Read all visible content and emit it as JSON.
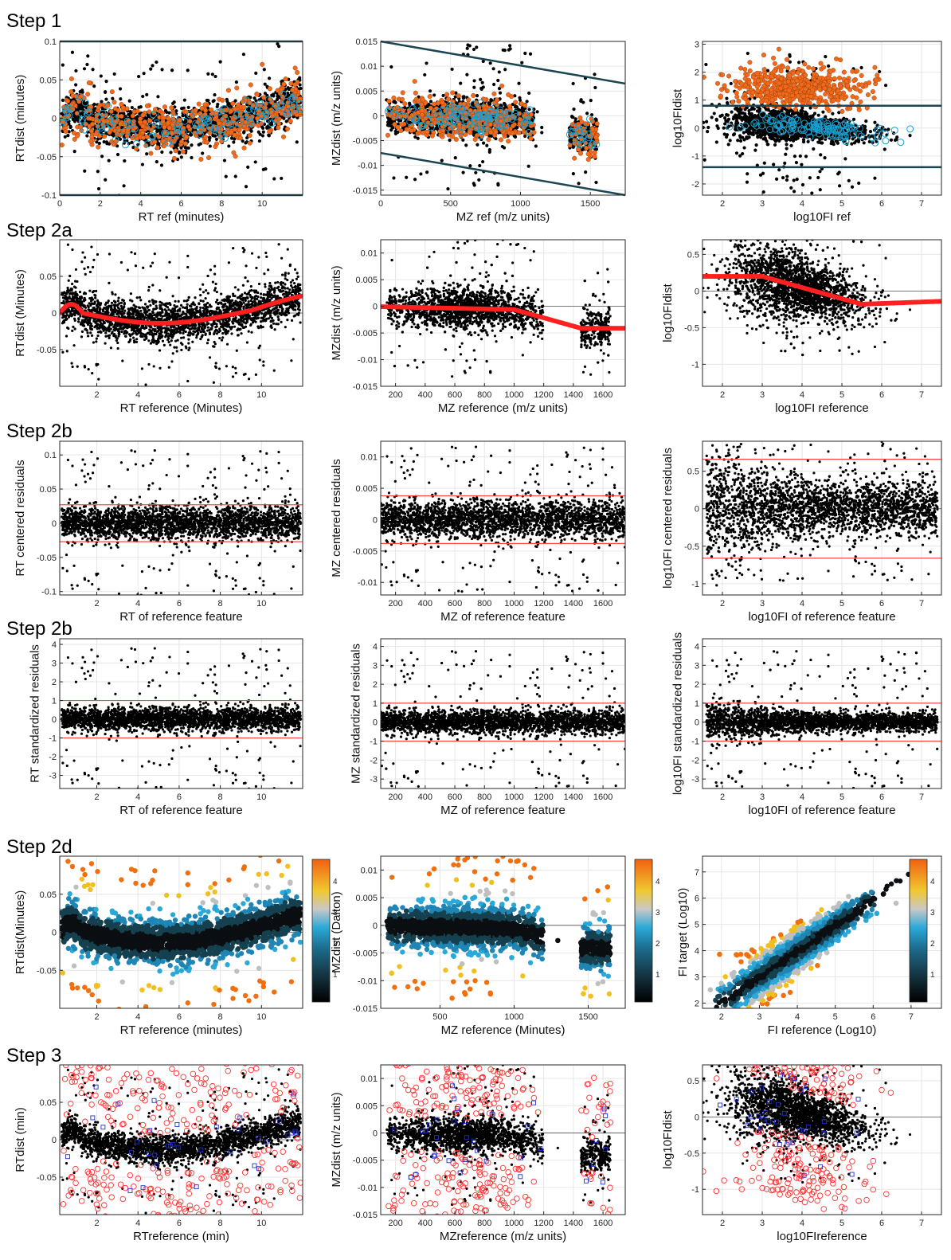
{
  "rows": [
    {
      "step": "Step 1",
      "panels": [
        {
          "xlabel": "RT ref (minutes)",
          "ylabel": "RTdist (minutes)",
          "xlim": [
            0,
            12
          ],
          "ylim": [
            -0.1,
            0.1
          ],
          "xticks": [
            0,
            2,
            4,
            6,
            8,
            10
          ],
          "yticks": [
            -0.1,
            -0.05,
            0,
            0.05,
            0.1
          ],
          "yfmt": [
            "-0.1",
            "-0.05",
            "0",
            "0.05",
            "0.1"
          ],
          "style": "s1",
          "curve": "rt",
          "spread": 0.018,
          "lines": [
            0.1,
            -0.1
          ]
        },
        {
          "xlabel": "MZ ref (m/z units)",
          "ylabel": "MZdist (m/z units)",
          "xlim": [
            0,
            1750
          ],
          "ylim": [
            -0.016,
            0.015
          ],
          "xticks": [
            0,
            500,
            1000,
            1500
          ],
          "yticks": [
            -0.015,
            -0.01,
            -0.005,
            0,
            0.005,
            0.01,
            0.015
          ],
          "yfmt": [
            "-0.015",
            "-0.01",
            "-0.005",
            "0",
            "0.005",
            "0.01",
            "0.015"
          ],
          "style": "s1",
          "curve": "mz",
          "spread": 0.0022,
          "slanted": [
            [
              0,
              0.015,
              1750,
              0.0065
            ],
            [
              0,
              -0.0075,
              1750,
              -0.016
            ]
          ]
        },
        {
          "xlabel": "log10FI ref",
          "ylabel": "log10FIdist",
          "xlim": [
            1.5,
            7.5
          ],
          "ylim": [
            -2.4,
            3.1
          ],
          "xticks": [
            2,
            3,
            4,
            5,
            6,
            7
          ],
          "yticks": [
            -2,
            -1,
            0,
            1,
            2,
            3
          ],
          "yfmt": [
            "-2",
            "-1",
            "0",
            "1",
            "2",
            "3"
          ],
          "style": "s1",
          "curve": "fi",
          "spread": 0.28,
          "lines": [
            0.8,
            -1.4
          ]
        }
      ]
    },
    {
      "step": "Step 2a",
      "panels": [
        {
          "xlabel": "RT reference (Minutes)",
          "ylabel": "RTdist (Minutes)",
          "xlim": [
            0.2,
            12
          ],
          "ylim": [
            -0.1,
            0.1
          ],
          "xticks": [
            2,
            4,
            6,
            8,
            10
          ],
          "yticks": [
            -0.05,
            0,
            0.05
          ],
          "yfmt": [
            "-0.05",
            "0",
            "0.05"
          ],
          "style": "dots",
          "curve": "rt",
          "spread": 0.02,
          "fit": true
        },
        {
          "xlabel": "MZ reference (m/z units)",
          "ylabel": "MZdist (m/z units)",
          "xlim": [
            100,
            1750
          ],
          "ylim": [
            -0.015,
            0.0125
          ],
          "xticks": [
            200,
            400,
            600,
            800,
            1000,
            1200,
            1400,
            1600
          ],
          "yticks": [
            -0.015,
            -0.01,
            -0.005,
            0,
            0.005,
            0.01
          ],
          "yfmt": [
            "-0.015",
            "-0.01",
            "-0.005",
            "0",
            "0.005",
            "0.01"
          ],
          "style": "dots",
          "curve": "mz",
          "spread": 0.0025,
          "fit": true
        },
        {
          "xlabel": "log10FI reference",
          "ylabel": "log10FIdist",
          "xlim": [
            1.5,
            7.5
          ],
          "ylim": [
            -1.3,
            0.7
          ],
          "xticks": [
            2,
            3,
            4,
            5,
            6,
            7
          ],
          "yticks": [
            -1,
            -0.5,
            0,
            0.5
          ],
          "yfmt": [
            "-1",
            "-0.5",
            "0",
            "0.5"
          ],
          "style": "dots",
          "curve": "fi",
          "spread": 0.25,
          "fit": true
        }
      ]
    },
    {
      "step": "Step 2b",
      "panels": [
        {
          "xlabel": "RT of reference feature",
          "ylabel": "RT centered residuals",
          "xlim": [
            0.2,
            12
          ],
          "ylim": [
            -0.105,
            0.12
          ],
          "xticks": [
            2,
            4,
            6,
            8,
            10
          ],
          "yticks": [
            -0.1,
            -0.05,
            0,
            0.05,
            0.1
          ],
          "yfmt": [
            "-0.1",
            "-0.05",
            "0",
            "0.05",
            "0.1"
          ],
          "style": "dots",
          "curve": "flat",
          "spread": 0.018,
          "lines": [
            0.027,
            -0.027
          ],
          "lineColor": "#ff4444"
        },
        {
          "xlabel": "MZ of reference feature",
          "ylabel": "MZ centered residuals",
          "xlim": [
            100,
            1750
          ],
          "ylim": [
            -0.012,
            0.0125
          ],
          "xticks": [
            200,
            400,
            600,
            800,
            1000,
            1200,
            1400,
            1600
          ],
          "yticks": [
            -0.01,
            -0.005,
            0,
            0.005,
            0.01
          ],
          "yfmt": [
            "-0.01",
            "-0.005",
            "0",
            "0.005",
            "0.01"
          ],
          "style": "dots",
          "curve": "flat",
          "spread": 0.0022,
          "lines": [
            0.0038,
            -0.0038
          ],
          "lineColor": "#ff4444"
        },
        {
          "xlabel": "log10FI of reference feature",
          "ylabel": "log10FI centered residuals",
          "xlim": [
            1.5,
            7.5
          ],
          "ylim": [
            -1.15,
            0.9
          ],
          "xticks": [
            2,
            3,
            4,
            5,
            6,
            7
          ],
          "yticks": [
            -1,
            -0.5,
            0,
            0.5
          ],
          "yfmt": [
            "-1",
            "-0.5",
            "0",
            "0.5"
          ],
          "style": "dots",
          "curve": "flat",
          "spread": 0.26,
          "lines": [
            0.66,
            -0.66
          ],
          "lineColor": "#ff4444"
        }
      ]
    },
    {
      "step": "Step 2b",
      "panels": [
        {
          "xlabel": "RT of reference feature",
          "ylabel": "RT standardized residuals",
          "xlim": [
            0.2,
            12
          ],
          "ylim": [
            -3.7,
            4.3
          ],
          "xticks": [
            2,
            4,
            6,
            8,
            10
          ],
          "yticks": [
            -3,
            -2,
            -1,
            0,
            1,
            2,
            3,
            4
          ],
          "yfmt": [
            "-3",
            "-2",
            "-1",
            "0",
            "1",
            "2",
            "3",
            "4"
          ],
          "style": "dots",
          "curve": "flat",
          "spread": 0.45,
          "lines": [
            1,
            -1
          ],
          "lineColor": "#ff4444"
        },
        {
          "xlabel": "MZ of reference feature",
          "ylabel": "MZ standardized residuals",
          "xlim": [
            100,
            1750
          ],
          "ylim": [
            -3.5,
            4.4
          ],
          "xticks": [
            200,
            400,
            600,
            800,
            1000,
            1200,
            1400,
            1600
          ],
          "yticks": [
            -3,
            -2,
            -1,
            0,
            1,
            2,
            3,
            4
          ],
          "yfmt": [
            "-3",
            "-2",
            "-1",
            "0",
            "1",
            "2",
            "3",
            "4"
          ],
          "style": "dots",
          "curve": "flat",
          "spread": 0.45,
          "lines": [
            1,
            -1
          ],
          "lineColor": "#ff4444"
        },
        {
          "xlabel": "log10FI of reference feature",
          "ylabel": "log10FI standardized residuals",
          "xlim": [
            1.5,
            7.5
          ],
          "ylim": [
            -3.5,
            4.4
          ],
          "xticks": [
            2,
            3,
            4,
            5,
            6,
            7
          ],
          "yticks": [
            -3,
            -2,
            -1,
            0,
            1,
            2,
            3,
            4
          ],
          "yfmt": [
            "-3",
            "-2",
            "-1",
            "0",
            "1",
            "2",
            "3",
            "4"
          ],
          "style": "dots",
          "curve": "flat",
          "spread": 0.35,
          "lines": [
            1,
            -1
          ],
          "lineColor": "#ff4444"
        }
      ]
    },
    {
      "step": "Step 2d",
      "panels": [
        {
          "xlabel": "RT reference (minutes)",
          "ylabel": "RTdist(Minutes)",
          "xlim": [
            0.2,
            12
          ],
          "ylim": [
            -0.1,
            0.1
          ],
          "xticks": [
            2,
            4,
            6,
            8,
            10
          ],
          "yticks": [
            -0.05,
            0,
            0.05
          ],
          "yfmt": [
            "-0.05",
            "0",
            "0.05"
          ],
          "style": "heat",
          "curve": "rt",
          "spread": 0.02,
          "colorbar": [
            1,
            2,
            3,
            4
          ]
        },
        {
          "xlabel": "MZ reference (Minutes)",
          "ylabel": "MZdist (Dalton)",
          "xlim": [
            100,
            1750
          ],
          "ylim": [
            -0.015,
            0.0125
          ],
          "xticks": [
            500,
            1000,
            1500
          ],
          "yticks": [
            -0.015,
            -0.01,
            -0.005,
            0,
            0.005,
            0.01
          ],
          "yfmt": [
            "-0.015",
            "-0.01",
            "-0.005",
            "0",
            "0.005",
            "0.01"
          ],
          "style": "heat",
          "curve": "mz",
          "spread": 0.0025,
          "colorbar": [
            1,
            2,
            3,
            4
          ]
        },
        {
          "xlabel": "FI reference (Log10)",
          "ylabel": "FI target (Log10)",
          "xlim": [
            1.5,
            7.8
          ],
          "ylim": [
            1.8,
            7.6
          ],
          "xticks": [
            2,
            3,
            4,
            5,
            6,
            7
          ],
          "yticks": [
            2,
            3,
            4,
            5,
            6,
            7
          ],
          "yfmt": [
            "2",
            "3",
            "4",
            "5",
            "6",
            "7"
          ],
          "style": "heat",
          "curve": "diag",
          "spread": 0.3,
          "colorbar": [
            1,
            2,
            3,
            4
          ]
        }
      ]
    },
    {
      "step": "Step 3",
      "panels": [
        {
          "xlabel": "RTreference (min)",
          "ylabel": "RTdist (min)",
          "xlim": [
            0.2,
            12
          ],
          "ylim": [
            -0.1,
            0.1
          ],
          "xticks": [
            2,
            4,
            6,
            8,
            10
          ],
          "yticks": [
            -0.05,
            0,
            0.05
          ],
          "yfmt": [
            "-0.05",
            "0",
            "0.05"
          ],
          "style": "s3",
          "curve": "rt",
          "spread": 0.014
        },
        {
          "xlabel": "MZreference (m/z units)",
          "ylabel": "MZdist (m/z units)",
          "xlim": [
            100,
            1750
          ],
          "ylim": [
            -0.015,
            0.0125
          ],
          "xticks": [
            200,
            400,
            600,
            800,
            1000,
            1200,
            1400,
            1600
          ],
          "yticks": [
            -0.015,
            -0.01,
            -0.005,
            0,
            0.005,
            0.01
          ],
          "yfmt": [
            "-0.015",
            "-0.01",
            "-0.005",
            "0",
            "0.005",
            "0.01"
          ],
          "style": "s3",
          "curve": "mz",
          "spread": 0.0022
        },
        {
          "xlabel": "log10FIreference",
          "ylabel": "log10FIdist",
          "xlim": [
            1.5,
            7.5
          ],
          "ylim": [
            -1.35,
            0.72
          ],
          "xticks": [
            2,
            3,
            4,
            5,
            6,
            7
          ],
          "yticks": [
            -1,
            -0.5,
            0,
            0.5
          ],
          "yfmt": [
            "-1",
            "-0.5",
            "0",
            "0.5"
          ],
          "style": "s3",
          "curve": "fi",
          "spread": 0.22
        }
      ]
    }
  ],
  "chart_data": {
    "type": "scatter",
    "description_rows": [
      "Step 1",
      "Step 2a",
      "Step 2b",
      "Step 2b",
      "Step 2d",
      "Step 3"
    ],
    "colorbar_ticks": [
      1,
      2,
      3,
      4
    ],
    "colorbar_colors": [
      "#000000",
      "#1f4e63",
      "#1d8fc2",
      "#c0c0c0",
      "#f0c020",
      "#f07010"
    ]
  }
}
